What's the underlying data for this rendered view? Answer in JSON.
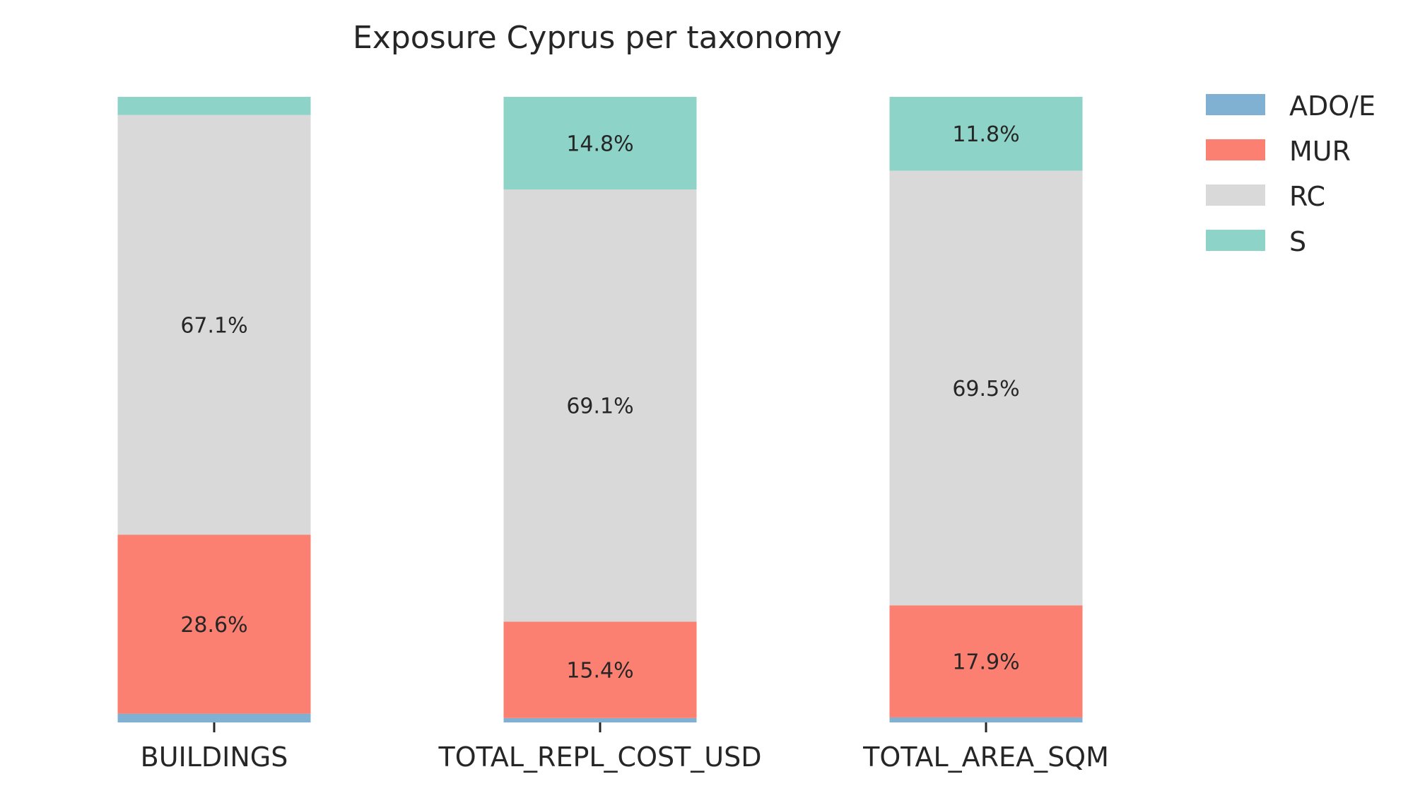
{
  "chart_data": {
    "type": "bar",
    "stacked": true,
    "percent_stacked": true,
    "title": "Exposure Cyprus per taxonomy",
    "xlabel": "",
    "ylabel": "",
    "ylim": [
      0,
      100
    ],
    "grid": false,
    "legend_position": "top-right",
    "categories": [
      "BUILDINGS",
      "TOTAL_REPL_COST_USD",
      "TOTAL_AREA_SQM"
    ],
    "series": [
      {
        "name": "ADO/E",
        "color": "#80b1d3",
        "values": [
          1.4,
          0.7,
          0.8
        ],
        "labels": [
          "",
          "",
          ""
        ]
      },
      {
        "name": "MUR",
        "color": "#fb8072",
        "values": [
          28.6,
          15.4,
          17.9
        ],
        "labels": [
          "28.6%",
          "15.4%",
          "17.9%"
        ]
      },
      {
        "name": "RC",
        "color": "#d9d9d9",
        "values": [
          67.1,
          69.1,
          69.5
        ],
        "labels": [
          "67.1%",
          "69.1%",
          "69.5%"
        ]
      },
      {
        "name": "S",
        "color": "#8dd3c7",
        "values": [
          2.9,
          14.8,
          11.8
        ],
        "labels": [
          "",
          "14.8%",
          "11.8%"
        ]
      }
    ]
  }
}
